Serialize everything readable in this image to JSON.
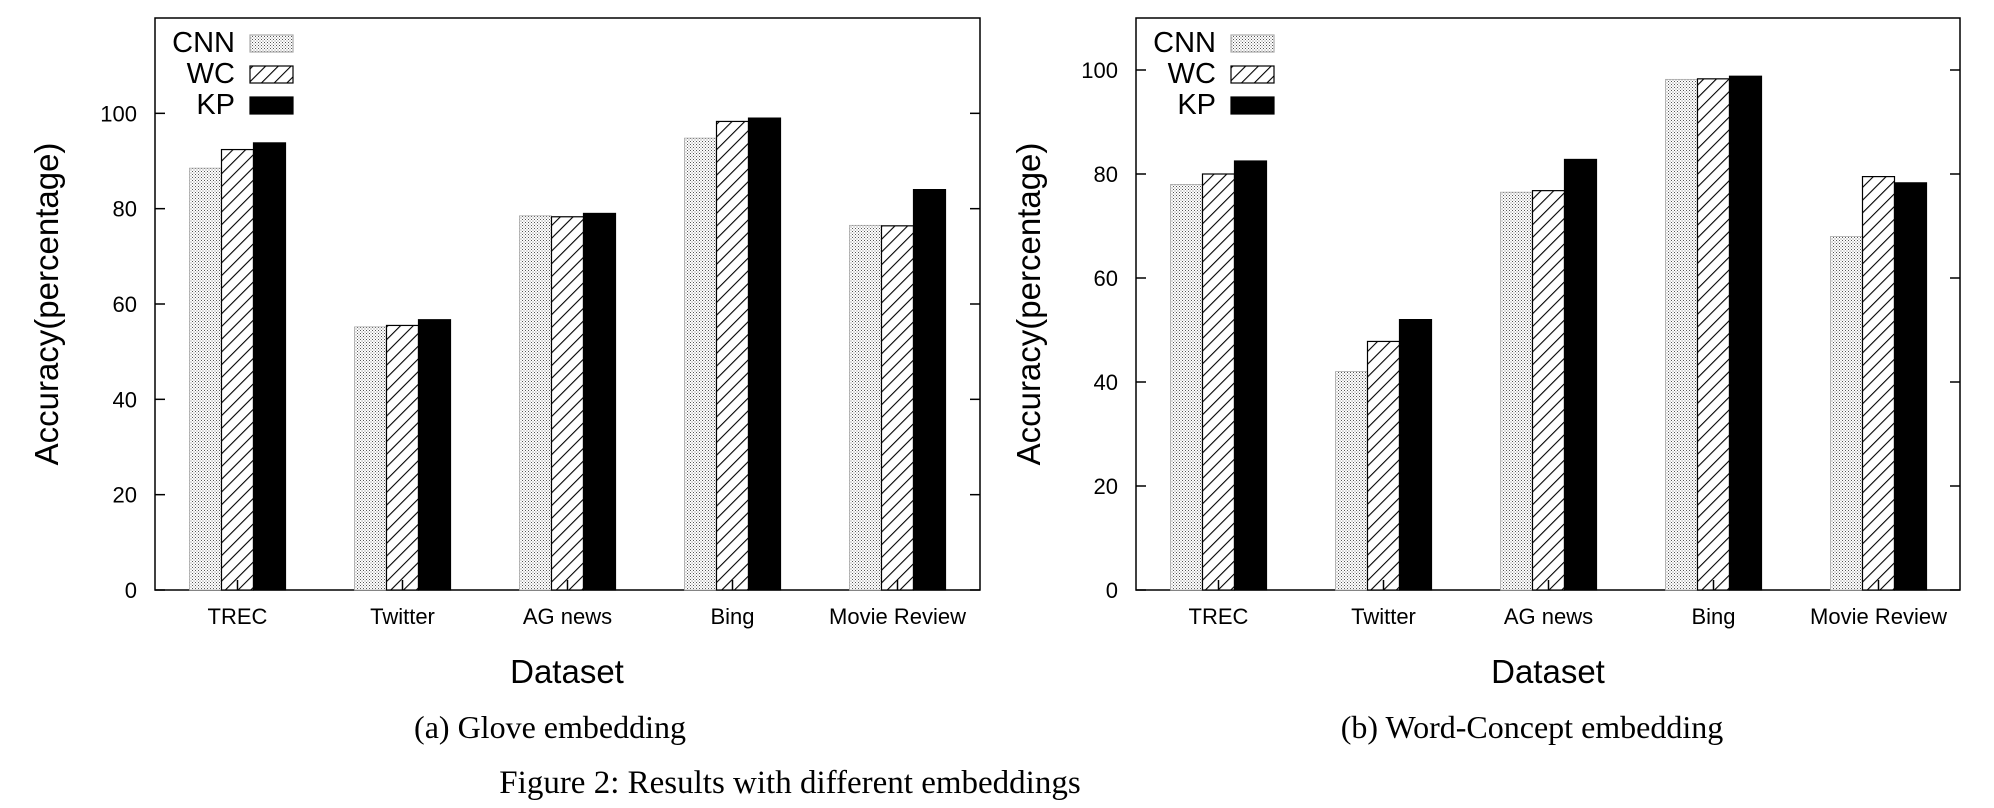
{
  "figure": {
    "caption": "Figure 2: Results with different embeddings"
  },
  "chart_data": [
    {
      "type": "bar",
      "panel_caption": "(a) Glove embedding",
      "xlabel": "Dataset",
      "ylabel": "Accuracy(percentage)",
      "ylim": [
        0,
        120
      ],
      "yticks": [
        0,
        20,
        40,
        60,
        80,
        100
      ],
      "categories": [
        "TREC",
        "Twitter",
        "AG news",
        "Bing",
        "Movie Review"
      ],
      "legend_position": "top-left",
      "grid": false,
      "series": [
        {
          "name": "CNN",
          "pattern": "dotted",
          "values": [
            88.5,
            55.2,
            78.5,
            94.8,
            76.5
          ]
        },
        {
          "name": "WC",
          "pattern": "hatched",
          "values": [
            92.4,
            55.5,
            78.3,
            98.3,
            76.4
          ]
        },
        {
          "name": "KP",
          "pattern": "solid",
          "values": [
            93.8,
            56.7,
            79.0,
            99.0,
            84.0
          ]
        }
      ]
    },
    {
      "type": "bar",
      "panel_caption": "(b) Word-Concept embedding",
      "xlabel": "Dataset",
      "ylabel": "Accuracy(percentage)",
      "ylim": [
        0,
        110
      ],
      "yticks": [
        0,
        20,
        40,
        60,
        80,
        100
      ],
      "categories": [
        "TREC",
        "Twitter",
        "AG news",
        "Bing",
        "Movie Review"
      ],
      "legend_position": "top-left",
      "grid": false,
      "series": [
        {
          "name": "CNN",
          "pattern": "dotted",
          "values": [
            78.0,
            42.0,
            76.5,
            98.2,
            68.0
          ]
        },
        {
          "name": "WC",
          "pattern": "hatched",
          "values": [
            80.0,
            47.8,
            76.8,
            98.3,
            79.5
          ]
        },
        {
          "name": "KP",
          "pattern": "solid",
          "values": [
            82.5,
            52.0,
            82.8,
            98.8,
            78.3
          ]
        }
      ]
    }
  ]
}
